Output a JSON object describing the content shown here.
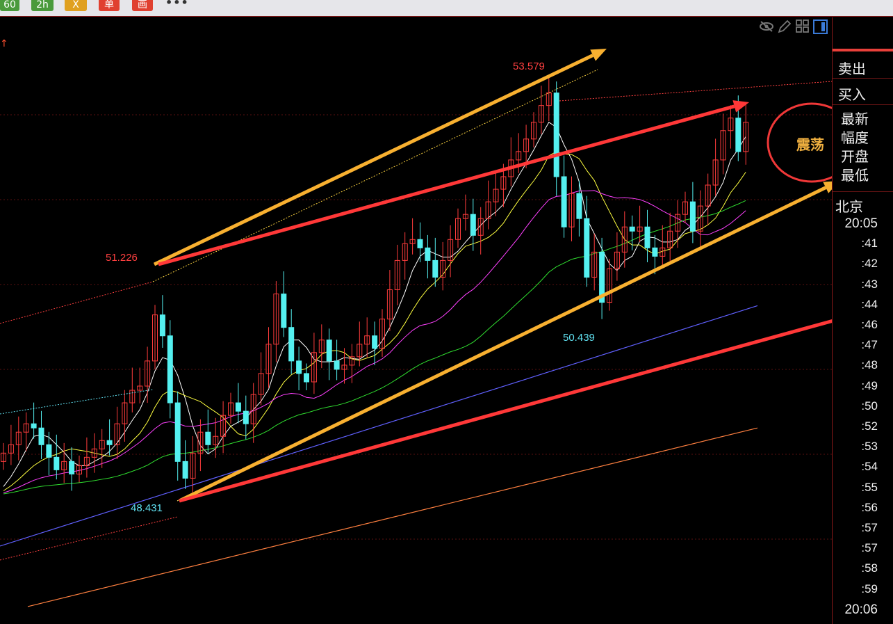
{
  "toolbar": {
    "buttons": [
      {
        "label": "60",
        "color": "#4a9a3c"
      },
      {
        "label": "2h",
        "color": "#4a9a3c"
      },
      {
        "label": "X",
        "color": "#e0a020"
      },
      {
        "label": "单",
        "color": "#e04030"
      },
      {
        "label": "画",
        "color": "#e04030"
      }
    ],
    "more": "•••"
  },
  "top_icons": [
    "eye-hidden-icon",
    "pencil-icon",
    "grid-icon",
    "panel-toggle-icon"
  ],
  "side": {
    "sell": "卖出",
    "buy": "买入",
    "labels": [
      "最新",
      "幅度",
      "开盘",
      "最低"
    ],
    "region": "北京",
    "times": [
      "20:05",
      ":41",
      ":42",
      ":43",
      ":44",
      ":46",
      ":47",
      ":48",
      ":49",
      ":50",
      ":52",
      ":53",
      ":54",
      ":55",
      ":56",
      ":57",
      ":57",
      ":58",
      ":59",
      "20:06"
    ]
  },
  "chart_data": {
    "type": "candlestick",
    "annotations": [
      {
        "text": "53.579",
        "color": "#ff4040"
      },
      {
        "text": "51.226",
        "color": "#ff4040"
      },
      {
        "text": "48.431",
        "color": "#5fe0f0"
      },
      {
        "text": "50.439",
        "color": "#5fe0f0"
      }
    ],
    "label_overlay": "震荡",
    "colors": {
      "up": "#ff3c3c",
      "down": "#54f0f0",
      "ma5": "#ffffff",
      "ma10": "#ffff40",
      "ma20": "#ff40ff",
      "ma40": "#30e030",
      "long1": "#6060ff",
      "long2": "#ff8040",
      "arrow_yellow": "#f8b030",
      "arrow_red": "#ff3838"
    },
    "closes": [
      49.0,
      49.1,
      49.25,
      49.35,
      49.3,
      49.1,
      48.95,
      48.8,
      48.9,
      48.75,
      48.85,
      48.95,
      49.05,
      49.15,
      49.1,
      49.35,
      49.6,
      49.75,
      49.8,
      50.1,
      50.65,
      50.4,
      49.6,
      48.9,
      48.7,
      49.0,
      49.25,
      49.1,
      49.2,
      49.45,
      49.6,
      49.5,
      49.35,
      49.7,
      49.95,
      50.3,
      50.9,
      50.5,
      50.1,
      49.95,
      49.85,
      50.2,
      50.35,
      50.1,
      50.0,
      50.05,
      50.15,
      50.3,
      50.4,
      50.25,
      50.6,
      50.95,
      51.3,
      51.5,
      51.55,
      51.45,
      51.3,
      51.1,
      51.3,
      51.55,
      51.8,
      51.85,
      51.6,
      51.8,
      52.0,
      52.15,
      52.3,
      52.5,
      52.6,
      52.75,
      52.95,
      53.15,
      53.3,
      52.3,
      51.7,
      52.1,
      51.8,
      51.1,
      51.4,
      50.8,
      51.2,
      51.4,
      51.7,
      51.65,
      51.7,
      51.45,
      51.35,
      51.45,
      51.65,
      51.85,
      52.0,
      51.65,
      51.95,
      52.2,
      52.5,
      52.85,
      53.0,
      52.6,
      52.95
    ],
    "long_ma": [
      {
        "start": 47.89,
        "end": 50.76
      },
      {
        "start": 46.96,
        "end": 49.3
      }
    ]
  }
}
